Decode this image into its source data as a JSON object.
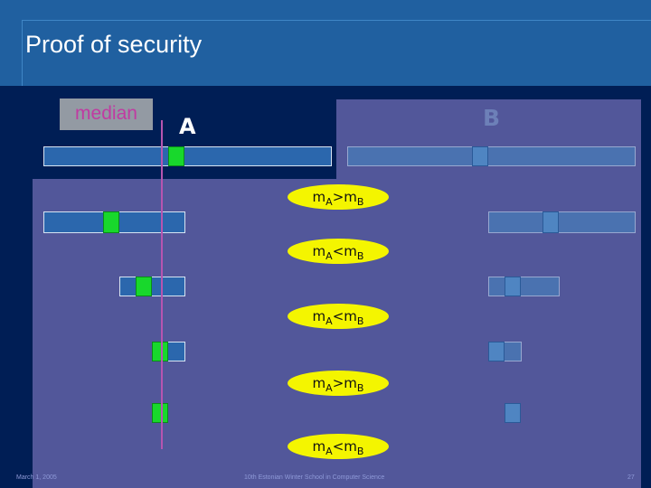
{
  "slide": {
    "title": "Proof of security",
    "median_label": "median",
    "party_a": "A",
    "party_b": "B"
  },
  "comparisons": [
    {
      "left": "m",
      "sub_left": "A",
      "op": ">",
      "right": "m",
      "sub_right": "B"
    },
    {
      "left": "m",
      "sub_left": "A",
      "op": "<",
      "right": "m",
      "sub_right": "B"
    },
    {
      "left": "m",
      "sub_left": "A",
      "op": "<",
      "right": "m",
      "sub_right": "B"
    },
    {
      "left": "m",
      "sub_left": "A",
      "op": ">",
      "right": "m",
      "sub_right": "B"
    },
    {
      "left": "m",
      "sub_left": "A",
      "op": "<",
      "right": "m",
      "sub_right": "B"
    }
  ],
  "footer": {
    "date": "March 1, 2005",
    "event": "10th Estonian Winter School in Computer Science",
    "page": "27"
  },
  "colors": {
    "background": "#001e55",
    "header": "#2060a0",
    "panel": "#52579a",
    "median_marker": "#18d82c",
    "comparison_fill": "#f4f500",
    "median_line": "#b655b0"
  }
}
